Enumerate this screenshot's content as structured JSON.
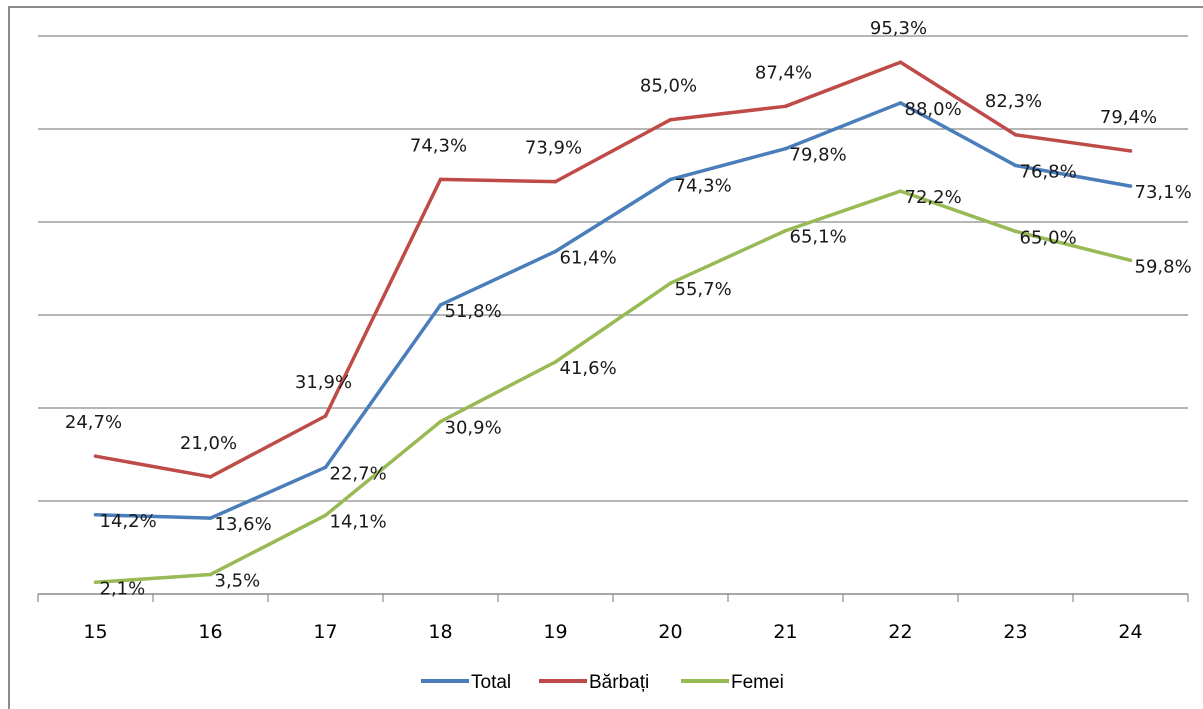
{
  "chart_data": {
    "type": "line",
    "title": "",
    "xlabel": "",
    "ylabel": "",
    "categories": [
      "15",
      "16",
      "17",
      "18",
      "19",
      "20",
      "21",
      "22",
      "23",
      "24"
    ],
    "ylim": [
      0,
      100
    ],
    "grid": true,
    "legend_position": "bottom",
    "series": [
      {
        "name": "Total",
        "color": "#4a7ebb",
        "values": [
          14.2,
          13.6,
          22.7,
          51.8,
          61.4,
          74.3,
          79.8,
          88.0,
          76.8,
          73.1
        ],
        "labels": [
          "14,2%",
          "13,6%",
          "22,7%",
          "51,8%",
          "61,4%",
          "74,3%",
          "79,8%",
          "88,0%",
          "76,8%",
          "73,1%"
        ]
      },
      {
        "name": "Bărbați",
        "color": "#be4b48",
        "values": [
          24.7,
          21.0,
          31.9,
          74.3,
          73.9,
          85.0,
          87.4,
          95.3,
          82.3,
          79.4
        ],
        "labels": [
          "24,7%",
          "21,0%",
          "31,9%",
          "74,3%",
          "73,9%",
          "85,0%",
          "87,4%",
          "95,3%",
          "82,3%",
          "79,4%"
        ]
      },
      {
        "name": "Femei",
        "color": "#98b954",
        "values": [
          2.1,
          3.5,
          14.1,
          30.9,
          41.6,
          55.7,
          65.1,
          72.2,
          65.0,
          59.8
        ],
        "labels": [
          "2,1%",
          "3,5%",
          "14,1%",
          "30,9%",
          "41,6%",
          "55,7%",
          "65,1%",
          "72,2%",
          "65,0%",
          "59,8%"
        ]
      }
    ]
  }
}
